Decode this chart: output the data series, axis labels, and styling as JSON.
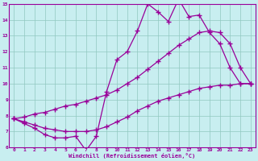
{
  "line1_x": [
    0,
    1,
    2,
    3,
    4,
    5,
    6,
    7,
    8,
    9,
    10,
    11,
    12,
    13,
    14,
    15,
    16,
    17,
    18,
    19,
    20,
    21,
    22,
    23
  ],
  "line1_y": [
    7.8,
    7.5,
    7.2,
    6.8,
    6.6,
    6.6,
    6.7,
    5.8,
    6.7,
    9.5,
    11.5,
    12.0,
    13.3,
    15.0,
    14.5,
    13.9,
    15.3,
    14.2,
    14.3,
    13.2,
    12.5,
    11.0,
    10.0,
    10.0
  ],
  "line2_x": [
    0,
    1,
    2,
    3,
    4,
    5,
    6,
    7,
    8,
    9,
    10,
    11,
    12,
    13,
    14,
    15,
    16,
    17,
    18,
    19,
    20,
    21,
    22,
    23
  ],
  "line2_y": [
    7.8,
    7.9,
    8.1,
    8.2,
    8.4,
    8.6,
    8.7,
    8.9,
    9.1,
    9.3,
    9.6,
    10.0,
    10.4,
    10.9,
    11.4,
    11.9,
    12.4,
    12.8,
    13.2,
    13.3,
    13.2,
    12.5,
    11.0,
    10.0
  ],
  "line3_x": [
    0,
    1,
    2,
    3,
    4,
    5,
    6,
    7,
    8,
    9,
    10,
    11,
    12,
    13,
    14,
    15,
    16,
    17,
    18,
    19,
    20,
    21,
    22,
    23
  ],
  "line3_y": [
    7.8,
    7.6,
    7.4,
    7.2,
    7.1,
    7.0,
    7.0,
    7.0,
    7.1,
    7.3,
    7.6,
    7.9,
    8.3,
    8.6,
    8.9,
    9.1,
    9.3,
    9.5,
    9.7,
    9.8,
    9.9,
    9.9,
    10.0,
    10.0
  ],
  "line_color": "#990099",
  "bg_color": "#c8eef0",
  "grid_color": "#90c8c0",
  "xlabel": "Windchill (Refroidissement éolien,°C)",
  "xlim": [
    -0.5,
    23.5
  ],
  "ylim": [
    6,
    15
  ],
  "xticks": [
    0,
    1,
    2,
    3,
    4,
    5,
    6,
    7,
    8,
    9,
    10,
    11,
    12,
    13,
    14,
    15,
    16,
    17,
    18,
    19,
    20,
    21,
    22,
    23
  ],
  "yticks": [
    6,
    7,
    8,
    9,
    10,
    11,
    12,
    13,
    14,
    15
  ]
}
